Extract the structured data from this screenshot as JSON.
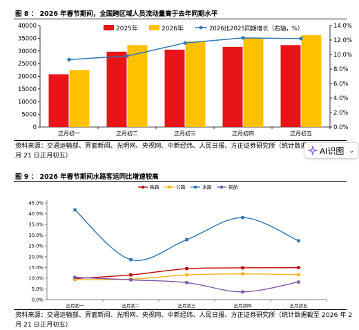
{
  "figure1": {
    "title": "图 8 ： 2026 年春节期间，全国跨区域人员流动量高于去年同期水平",
    "source": "资料来源：交通运输部、界面新闻、光明网、央视网、中新经纬、人民日报、方正证券研究所（统计数据截至 2026 年 2 月 21 日正月初五）"
  },
  "figure2": {
    "title": "图 9 ： 2026 年春节期间水路客运同比增速较高",
    "source": "资料来源：交通运输部、界面新闻、光明网、央视网、中新经纬、人民日报、方正证券研究所（统计数据截至 2026 年 2 月 21 日正月初五）"
  },
  "ai_button": {
    "label": "AI识图",
    "icon": "ai-sparkle-icon"
  },
  "chart_data": [
    {
      "type": "bar",
      "categories": [
        "正月初一",
        "正月初二",
        "正月初三",
        "正月初四",
        "正月初五"
      ],
      "series": [
        {
          "name": "2025年",
          "type": "bar",
          "color": "#E8141A",
          "values": [
            20800,
            29700,
            30500,
            31600,
            32300
          ]
        },
        {
          "name": "2026年",
          "type": "bar",
          "color": "#FFC000",
          "values": [
            22500,
            32300,
            33700,
            35200,
            36200
          ]
        },
        {
          "name": "2026比2025同期增长（右轴，%）",
          "type": "line",
          "axis": "right",
          "color": "#2E75B6",
          "values": [
            9.3,
            9.8,
            11.6,
            12.3,
            12.2
          ]
        }
      ],
      "ylim": [
        0,
        40000
      ],
      "y_ticks": [
        "0",
        "5000",
        "10000",
        "15000",
        "20000",
        "25000",
        "30000",
        "35000",
        "40000"
      ],
      "y2lim": [
        0,
        14
      ],
      "y2_ticks": [
        "0.0%",
        "2.0%",
        "4.0%",
        "6.0%",
        "8.0%",
        "10.0%",
        "12.0%",
        "14.0%"
      ],
      "legend": "top",
      "grid": false
    },
    {
      "type": "line",
      "categories": [
        "正月初一",
        "正月初二",
        "正月初三",
        "正月初四",
        "正月初五"
      ],
      "series": [
        {
          "name": "铁路",
          "color": "#C00000",
          "values": [
            9.8,
            11.5,
            14.4,
            14.8,
            14.9
          ]
        },
        {
          "name": "公路",
          "color": "#F5B21A",
          "values": [
            9.3,
            9.5,
            11.5,
            12.0,
            11.6
          ]
        },
        {
          "name": "水路",
          "color": "#2E75B6",
          "values": [
            41.8,
            18.6,
            27.9,
            38.2,
            27.4
          ]
        },
        {
          "name": "民航",
          "color": "#7E57A8",
          "values": [
            10.4,
            9.2,
            7.9,
            3.6,
            8.2
          ]
        }
      ],
      "ylim": [
        0,
        45
      ],
      "y_ticks": [
        "0.0%",
        "5.0%",
        "10.0%",
        "15.0%",
        "20.0%",
        "25.0%",
        "30.0%",
        "35.0%",
        "40.0%",
        "45.0%"
      ],
      "legend": "top",
      "grid": false,
      "smooth": true
    }
  ]
}
